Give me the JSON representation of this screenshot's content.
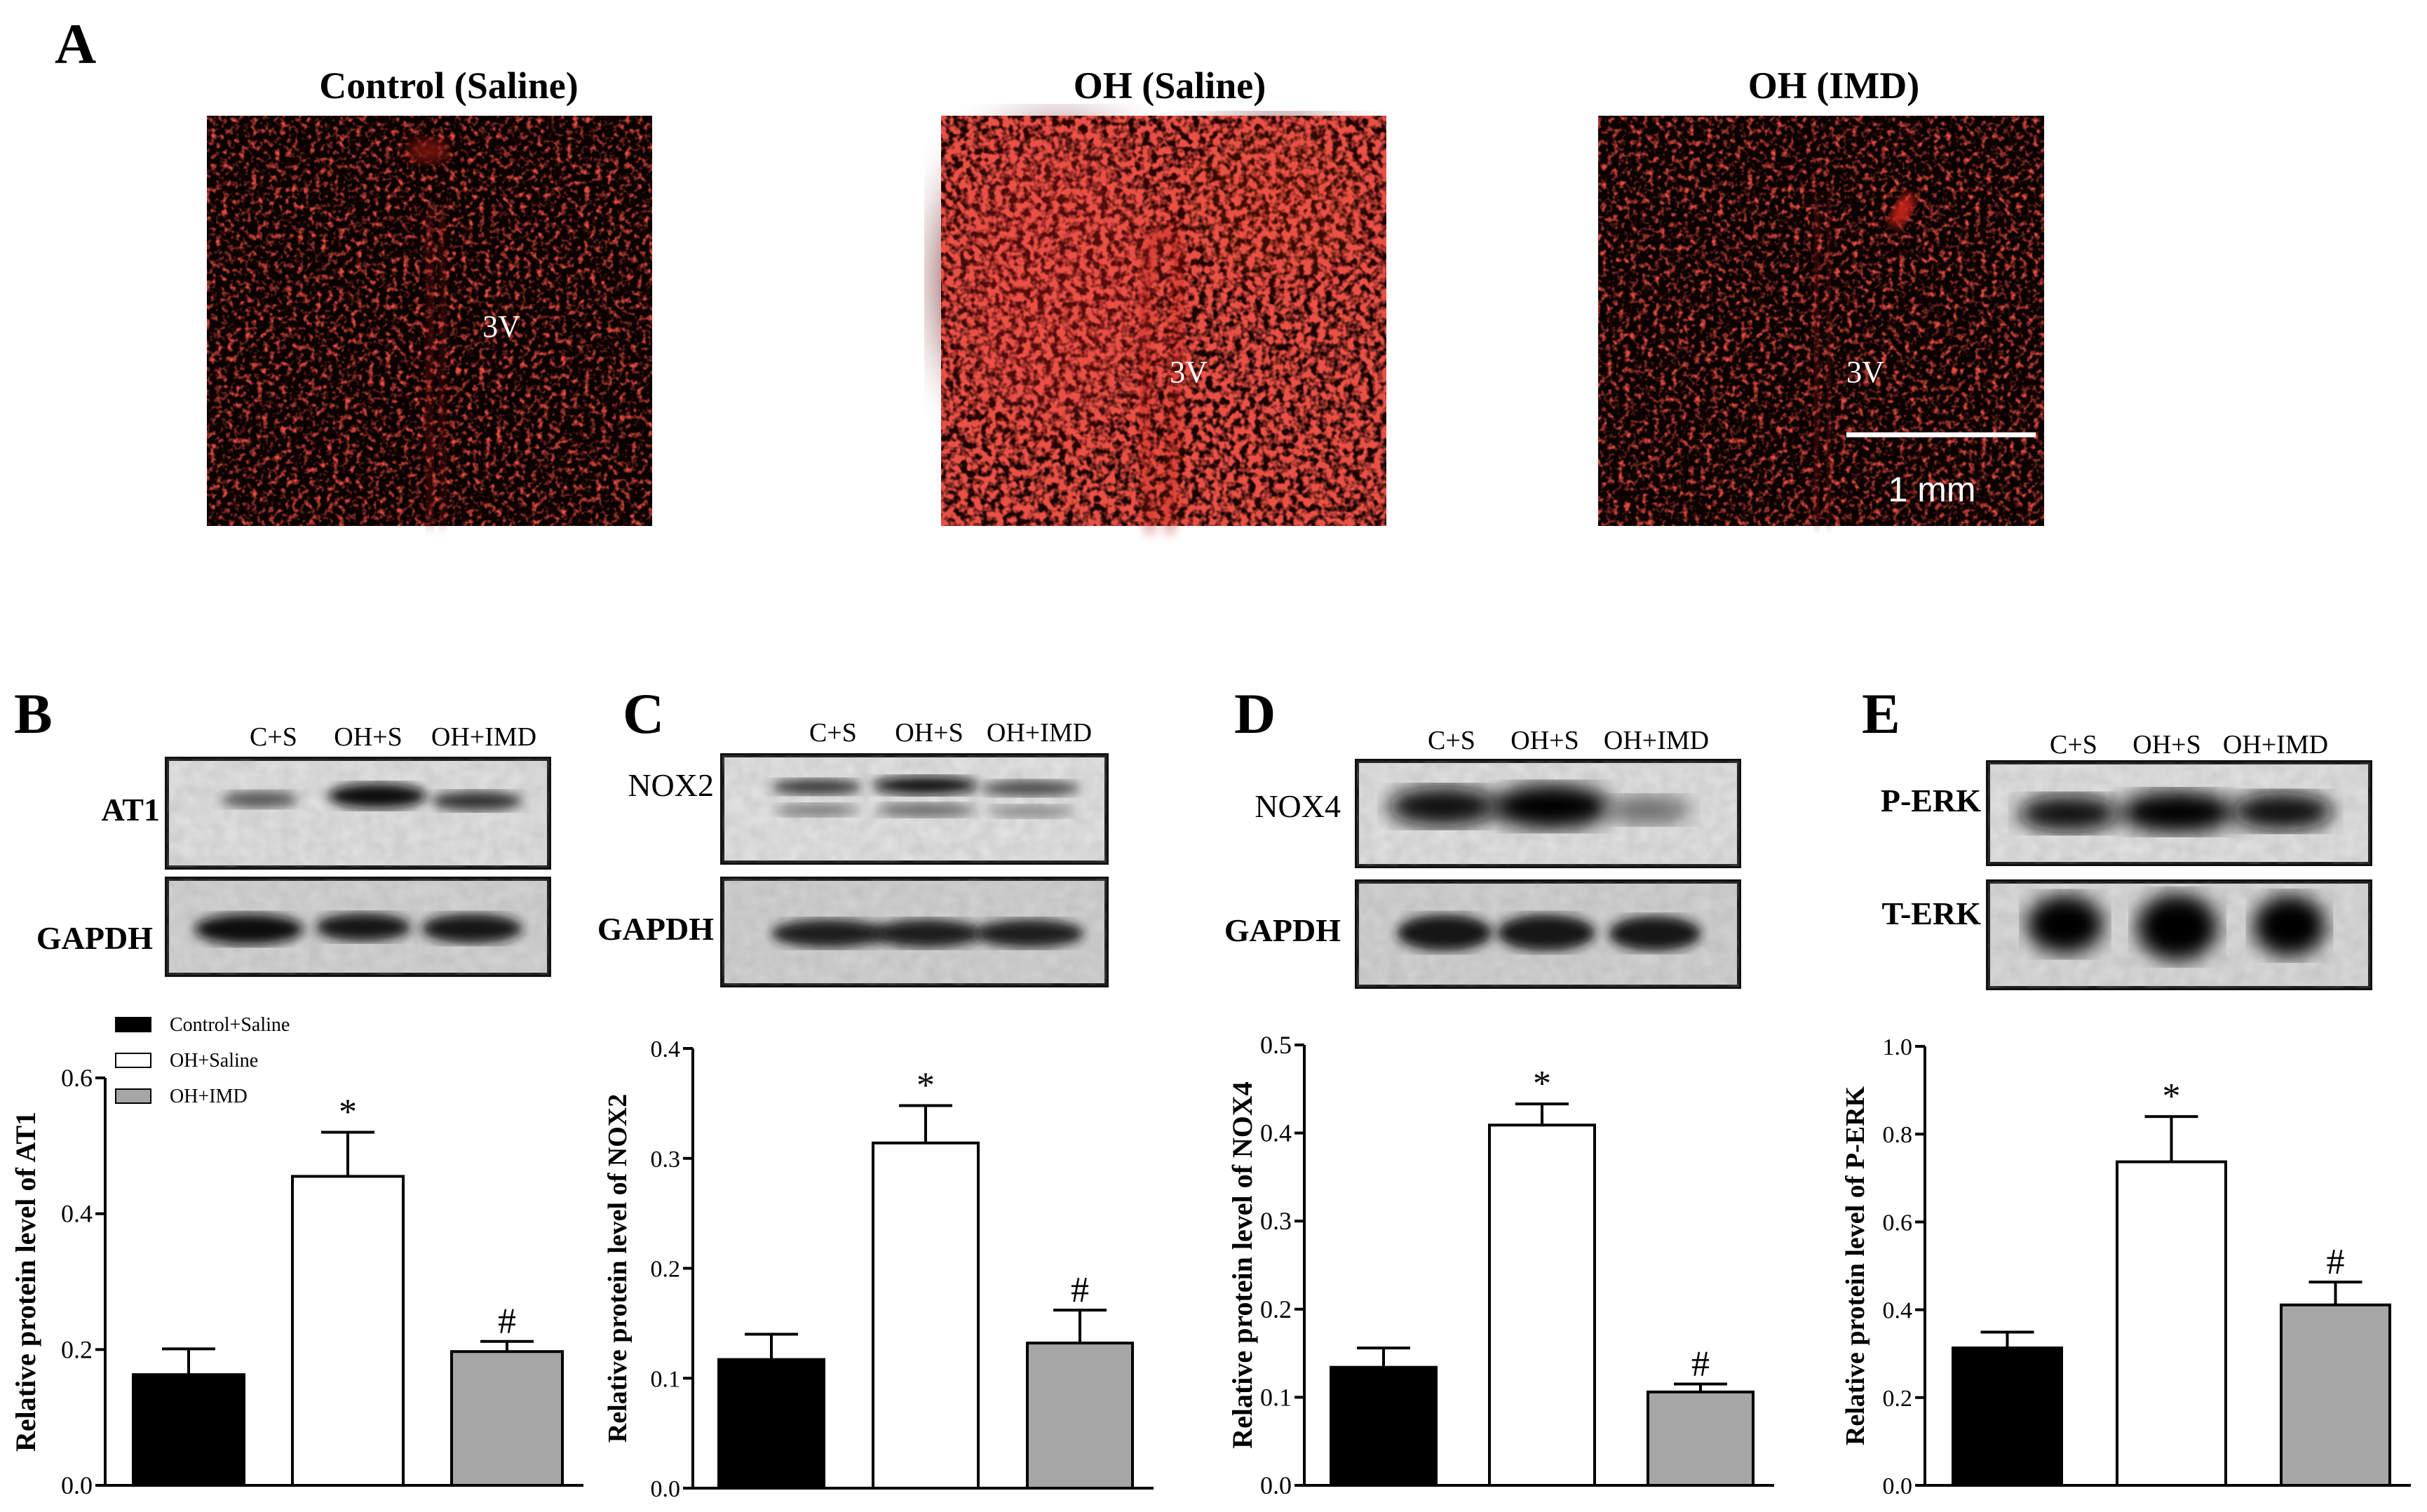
{
  "panel_letters": [
    "A",
    "B",
    "C",
    "D",
    "E"
  ],
  "panel_a": {
    "images": [
      {
        "title": "Control (Saline)",
        "label": "3V"
      },
      {
        "title": "OH (Saline)",
        "label": "3V"
      },
      {
        "title": "OH (IMD)",
        "label": "3V"
      }
    ],
    "scale_bar_label": "1 mm",
    "stain_color": "#c0140f"
  },
  "blots": [
    {
      "panel": "B",
      "lanes": [
        "C+S",
        "OH+S",
        "OH+IMD"
      ],
      "target": "AT1",
      "loading": "GAPDH"
    },
    {
      "panel": "C",
      "lanes": [
        "C+S",
        "OH+S",
        "OH+IMD"
      ],
      "target": "NOX2",
      "loading": "GAPDH"
    },
    {
      "panel": "D",
      "lanes": [
        "C+S",
        "OH+S",
        "OH+IMD"
      ],
      "target": "NOX4",
      "loading": "GAPDH"
    },
    {
      "panel": "E",
      "lanes": [
        "C+S",
        "OH+S",
        "OH+IMD"
      ],
      "target": "P-ERK",
      "loading": "T-ERK"
    }
  ],
  "legend": [
    {
      "label": "Control+Saline",
      "color": "#000000"
    },
    {
      "label": "OH+Saline",
      "color": "#ffffff"
    },
    {
      "label": "OH+IMD",
      "color": "#a6a6a6"
    }
  ],
  "chart_data": [
    {
      "type": "bar",
      "panel": "B",
      "ylabel": "Relative protein level of AT1",
      "ylim": [
        0,
        0.6
      ],
      "yticks": [
        "0.0",
        "0.2",
        "0.4",
        "0.6"
      ],
      "categories": [
        "Control+Saline",
        "OH+Saline",
        "OH+IMD"
      ],
      "values": [
        0.163,
        0.455,
        0.197
      ],
      "errors": [
        0.038,
        0.065,
        0.015
      ],
      "annotations": [
        "",
        "*",
        "#"
      ]
    },
    {
      "type": "bar",
      "panel": "C",
      "ylabel": "Relative protein level of NOX2",
      "ylim": [
        0,
        0.4
      ],
      "yticks": [
        "0.0",
        "0.1",
        "0.2",
        "0.3",
        "0.4"
      ],
      "categories": [
        "Control+Saline",
        "OH+Saline",
        "OH+IMD"
      ],
      "values": [
        0.117,
        0.314,
        0.132
      ],
      "errors": [
        0.023,
        0.034,
        0.03
      ],
      "annotations": [
        "",
        "*",
        "#"
      ]
    },
    {
      "type": "bar",
      "panel": "D",
      "ylabel": "Relative protein level of NOX4",
      "ylim": [
        0,
        0.5
      ],
      "yticks": [
        "0.0",
        "0.1",
        "0.2",
        "0.3",
        "0.4",
        "0.5"
      ],
      "categories": [
        "Control+Saline",
        "OH+Saline",
        "OH+IMD"
      ],
      "values": [
        0.134,
        0.409,
        0.106
      ],
      "errors": [
        0.022,
        0.024,
        0.009
      ],
      "annotations": [
        "",
        "*",
        "#"
      ]
    },
    {
      "type": "bar",
      "panel": "E",
      "ylabel": "Relative protein level of P-ERK",
      "ylim": [
        0,
        1.0
      ],
      "yticks": [
        "0.0",
        "0.2",
        "0.4",
        "0.6",
        "0.8",
        "1.0"
      ],
      "categories": [
        "Control+Saline",
        "OH+Saline",
        "OH+IMD"
      ],
      "values": [
        0.313,
        0.737,
        0.411
      ],
      "errors": [
        0.036,
        0.103,
        0.052
      ],
      "annotations": [
        "",
        "*",
        "#"
      ]
    }
  ]
}
